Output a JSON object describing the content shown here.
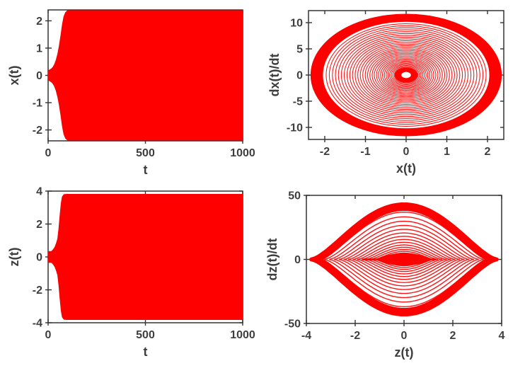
{
  "figure": {
    "background": "#ffffff",
    "line_color": "#fe0000",
    "axes_color": "#333333",
    "text_color": "#3e3e3e",
    "layout": "2x2 subplot grid, no titles, no grid lines, boxed axes"
  },
  "chart_data": [
    {
      "id": "x-vs-t",
      "type": "line",
      "subtype": "timeseries_envelope",
      "title": "",
      "xlabel": "t",
      "ylabel": "x(t)",
      "xlim": [
        0,
        1000
      ],
      "ylim": [
        -2.4,
        2.4
      ],
      "xticks": [
        0,
        500,
        1000
      ],
      "yticks": [
        -2,
        -1,
        0,
        1,
        2
      ],
      "grid": false,
      "box": true,
      "series": [
        {
          "name": "x(t)",
          "style": "dense red oscillation filling its amplitude envelope",
          "steady_state_amplitude": 2.37,
          "envelope": {
            "t": [
              0,
              4,
              10,
              18,
              26,
              34,
              42,
              50,
              58,
              66,
              74,
              82,
              90,
              100,
              1000
            ],
            "amplitude": [
              0.05,
              0.18,
              0.2,
              0.24,
              0.3,
              0.4,
              0.55,
              0.78,
              1.08,
              1.45,
              1.85,
              2.15,
              2.3,
              2.37,
              2.37
            ]
          }
        }
      ]
    },
    {
      "id": "dxdt-vs-x",
      "type": "line",
      "subtype": "phase_spiral",
      "title": "",
      "xlabel": "x(t)",
      "ylabel": "dx(t)/dt",
      "xlim": [
        -2.4,
        2.4
      ],
      "ylim": [
        -12.3,
        12.3
      ],
      "xticks": [
        -2,
        -1,
        0,
        1,
        2
      ],
      "yticks": [
        -10,
        -5,
        0,
        5,
        10
      ],
      "grid": false,
      "box": true,
      "series": [
        {
          "name": "phase trajectory",
          "style": "elliptical spiral converging to thick limit-cycle band",
          "x_amplitude": 2.35,
          "dx_amplitude": 11.7,
          "rings": 44,
          "inner_density_power": 1.7,
          "outer_band_start": 0.87,
          "core_fraction": 0.12,
          "hole_fraction": 0.05
        }
      ]
    },
    {
      "id": "z-vs-t",
      "type": "line",
      "subtype": "timeseries_envelope",
      "title": "",
      "xlabel": "t",
      "ylabel": "z(t)",
      "xlim": [
        0,
        1000
      ],
      "ylim": [
        -4,
        4
      ],
      "xticks": [
        0,
        500,
        1000
      ],
      "yticks": [
        -4,
        -2,
        0,
        2,
        4
      ],
      "grid": false,
      "box": true,
      "series": [
        {
          "name": "z(t)",
          "style": "dense red oscillation filling its amplitude envelope",
          "steady_state_amplitude": 3.8,
          "envelope": {
            "t": [
              0,
              3,
              8,
              14,
              20,
              28,
              36,
              44,
              50,
              56,
              62,
              68,
              74,
              82,
              95,
              1000
            ],
            "amplitude": [
              0.05,
              0.3,
              0.33,
              0.3,
              0.35,
              0.45,
              0.6,
              0.85,
              1.1,
              1.7,
              2.5,
              3.25,
              3.65,
              3.78,
              3.8,
              3.8
            ]
          }
        }
      ]
    },
    {
      "id": "dzdt-vs-z",
      "type": "line",
      "subtype": "phase_lens",
      "title": "",
      "xlabel": "z(t)",
      "ylabel": "dz(t)/dt",
      "xlim": [
        -4,
        4
      ],
      "ylim": [
        -50,
        50
      ],
      "xticks": [
        -4,
        -2,
        0,
        2,
        4
      ],
      "yticks": [
        -50,
        0,
        50
      ],
      "grid": false,
      "box": true,
      "series": [
        {
          "name": "phase trajectory",
          "style": "nested eye/lens-shaped orbits with thick outer band and dense core",
          "z_amplitude": 3.8,
          "dz_amplitude": 43,
          "shape_exponent": 1.55,
          "rings": 22,
          "inner_density_power": 1.55,
          "outer_band_start": 0.9,
          "core_z": 1.15,
          "core_dz": 5
        }
      ]
    }
  ]
}
